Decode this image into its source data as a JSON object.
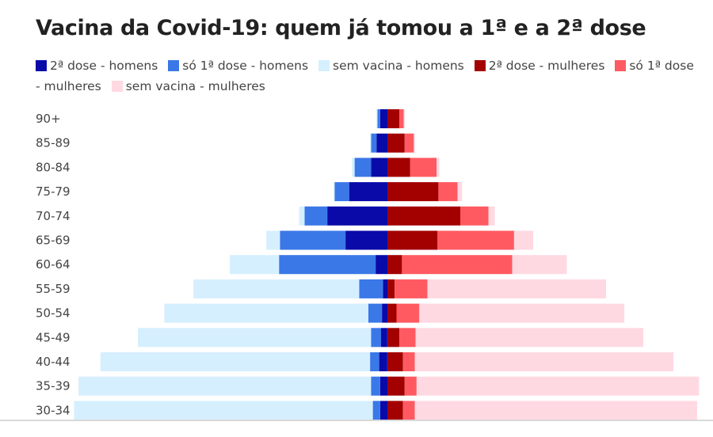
{
  "title": "Vacina da Covid-19: quem já tomou a 1ª e a 2ª dose",
  "legend": [
    {
      "label": "2ª dose - homens",
      "color": "#0a0aa8"
    },
    {
      "label": "só 1ª dose - homens",
      "color": "#3a78e8"
    },
    {
      "label": "sem vacina - homens",
      "color": "#d6efff"
    },
    {
      "label": "2ª dose - mulheres",
      "color": "#a30000"
    },
    {
      "label": "só 1ª dose - mulheres",
      "color": "#ff5a62"
    },
    {
      "label": "sem vacina - mulheres",
      "color": "#ffd9e2"
    }
  ],
  "chart_data": {
    "type": "bar",
    "orientation": "horizontal",
    "layout": "population pyramid (stacked)",
    "title": "Vacina da Covid-19: quem já tomou a 1ª e a 2ª dose",
    "categories": [
      "90+",
      "85-89",
      "80-84",
      "75-79",
      "70-74",
      "65-69",
      "60-64",
      "55-59",
      "50-54",
      "45-49",
      "40-44",
      "35-39",
      "30-34"
    ],
    "units": "approximate share, relative scale (not labeled)",
    "series": [
      {
        "name": "2ª dose - homens",
        "side": "left",
        "values": [
          0.8,
          1.2,
          1.8,
          4.2,
          6.6,
          4.6,
          1.3,
          0.5,
          0.6,
          0.7,
          0.9,
          0.8,
          0.8
        ]
      },
      {
        "name": "só 1ª dose - homens",
        "side": "left",
        "values": [
          0.3,
          0.6,
          1.8,
          1.6,
          2.5,
          7.2,
          10.6,
          2.6,
          1.5,
          1.1,
          1.0,
          1.0,
          0.8
        ]
      },
      {
        "name": "sem vacina - homens",
        "side": "left",
        "values": [
          0.1,
          0.1,
          0.3,
          0.1,
          0.6,
          1.5,
          5.4,
          18.2,
          22.4,
          25.6,
          29.6,
          32.1,
          32.8
        ]
      },
      {
        "name": "2ª dose - mulheres",
        "side": "right",
        "values": [
          1.3,
          1.9,
          2.5,
          5.6,
          8.0,
          5.5,
          1.6,
          0.8,
          1.0,
          1.3,
          1.7,
          1.9,
          1.7
        ]
      },
      {
        "name": "só 1ª dose - mulheres",
        "side": "right",
        "values": [
          0.5,
          1.0,
          2.9,
          2.1,
          3.1,
          8.4,
          12.1,
          3.6,
          2.5,
          1.8,
          1.3,
          1.3,
          1.3
        ]
      },
      {
        "name": "sem vacina - mulheres",
        "side": "right",
        "values": [
          0.1,
          0.1,
          0.3,
          0.5,
          0.7,
          2.1,
          6.0,
          19.6,
          22.5,
          25.0,
          28.4,
          31.0,
          31.0
        ]
      }
    ],
    "grid": false,
    "legend_position": "top"
  }
}
